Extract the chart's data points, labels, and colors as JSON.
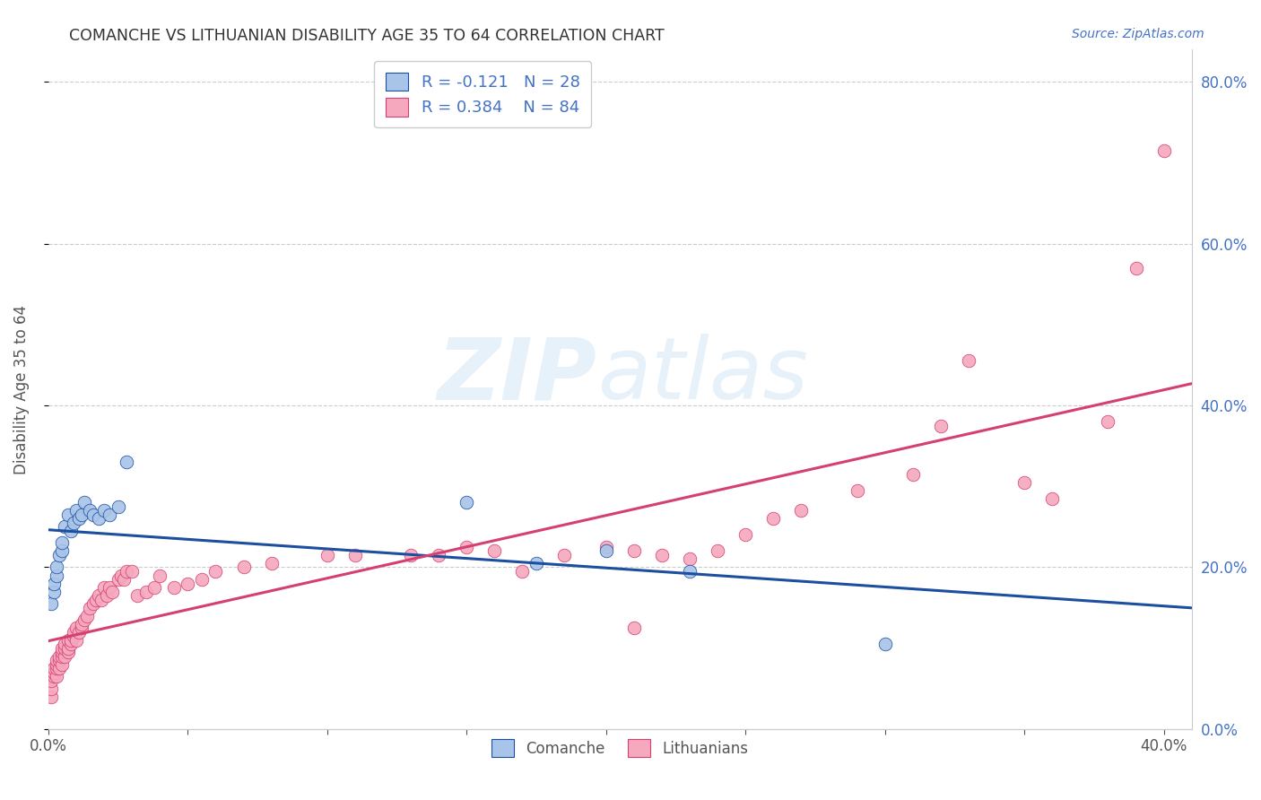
{
  "title": "COMANCHE VS LITHUANIAN DISABILITY AGE 35 TO 64 CORRELATION CHART",
  "source": "Source: ZipAtlas.com",
  "ylabel": "Disability Age 35 to 64",
  "legend_comanche": "Comanche",
  "legend_lithuanian": "Lithuanians",
  "R_comanche": -0.121,
  "N_comanche": 28,
  "R_lithuanian": 0.384,
  "N_lithuanian": 84,
  "comanche_color": "#a8c4e8",
  "comanche_line_color": "#1c4fa0",
  "lithuanian_color": "#f5a8be",
  "lithuanian_line_color": "#d44070",
  "text_color": "#4472c4",
  "legend_text_color": "#4472c4",
  "grid_color": "#cccccc",
  "comanche_x": [
    0.001,
    0.002,
    0.002,
    0.003,
    0.003,
    0.004,
    0.005,
    0.005,
    0.006,
    0.007,
    0.008,
    0.009,
    0.01,
    0.011,
    0.012,
    0.013,
    0.015,
    0.016,
    0.018,
    0.02,
    0.022,
    0.025,
    0.028,
    0.15,
    0.175,
    0.2,
    0.23,
    0.3
  ],
  "comanche_y": [
    0.155,
    0.17,
    0.18,
    0.19,
    0.2,
    0.215,
    0.22,
    0.23,
    0.25,
    0.265,
    0.245,
    0.255,
    0.27,
    0.26,
    0.265,
    0.28,
    0.27,
    0.265,
    0.26,
    0.27,
    0.265,
    0.275,
    0.33,
    0.28,
    0.205,
    0.22,
    0.195,
    0.105
  ],
  "lithuanian_x": [
    0.001,
    0.001,
    0.001,
    0.002,
    0.002,
    0.002,
    0.003,
    0.003,
    0.003,
    0.003,
    0.004,
    0.004,
    0.004,
    0.005,
    0.005,
    0.005,
    0.005,
    0.006,
    0.006,
    0.006,
    0.007,
    0.007,
    0.007,
    0.008,
    0.008,
    0.009,
    0.009,
    0.01,
    0.01,
    0.011,
    0.012,
    0.012,
    0.013,
    0.014,
    0.015,
    0.016,
    0.017,
    0.018,
    0.019,
    0.02,
    0.021,
    0.022,
    0.023,
    0.025,
    0.026,
    0.027,
    0.028,
    0.03,
    0.032,
    0.035,
    0.038,
    0.04,
    0.045,
    0.05,
    0.055,
    0.06,
    0.07,
    0.08,
    0.1,
    0.11,
    0.13,
    0.14,
    0.15,
    0.16,
    0.17,
    0.185,
    0.2,
    0.21,
    0.22,
    0.23,
    0.24,
    0.25,
    0.26,
    0.27,
    0.29,
    0.31,
    0.32,
    0.33,
    0.35,
    0.36,
    0.38,
    0.39,
    0.4,
    0.21
  ],
  "lithuanian_y": [
    0.04,
    0.05,
    0.06,
    0.065,
    0.07,
    0.075,
    0.065,
    0.075,
    0.08,
    0.085,
    0.075,
    0.085,
    0.09,
    0.08,
    0.09,
    0.095,
    0.1,
    0.09,
    0.1,
    0.105,
    0.095,
    0.1,
    0.11,
    0.105,
    0.11,
    0.115,
    0.12,
    0.11,
    0.125,
    0.12,
    0.125,
    0.13,
    0.135,
    0.14,
    0.15,
    0.155,
    0.16,
    0.165,
    0.16,
    0.175,
    0.165,
    0.175,
    0.17,
    0.185,
    0.19,
    0.185,
    0.195,
    0.195,
    0.165,
    0.17,
    0.175,
    0.19,
    0.175,
    0.18,
    0.185,
    0.195,
    0.2,
    0.205,
    0.215,
    0.215,
    0.215,
    0.215,
    0.225,
    0.22,
    0.195,
    0.215,
    0.225,
    0.22,
    0.215,
    0.21,
    0.22,
    0.24,
    0.26,
    0.27,
    0.295,
    0.315,
    0.375,
    0.455,
    0.305,
    0.285,
    0.38,
    0.57,
    0.715,
    0.125
  ],
  "xlim": [
    0.0,
    0.41
  ],
  "ylim": [
    0.0,
    0.84
  ],
  "xtick_show": [
    0.0,
    0.4
  ],
  "ytick_vals": [
    0.0,
    0.2,
    0.4,
    0.6,
    0.8
  ],
  "figsize": [
    14.06,
    8.92
  ],
  "dpi": 100
}
